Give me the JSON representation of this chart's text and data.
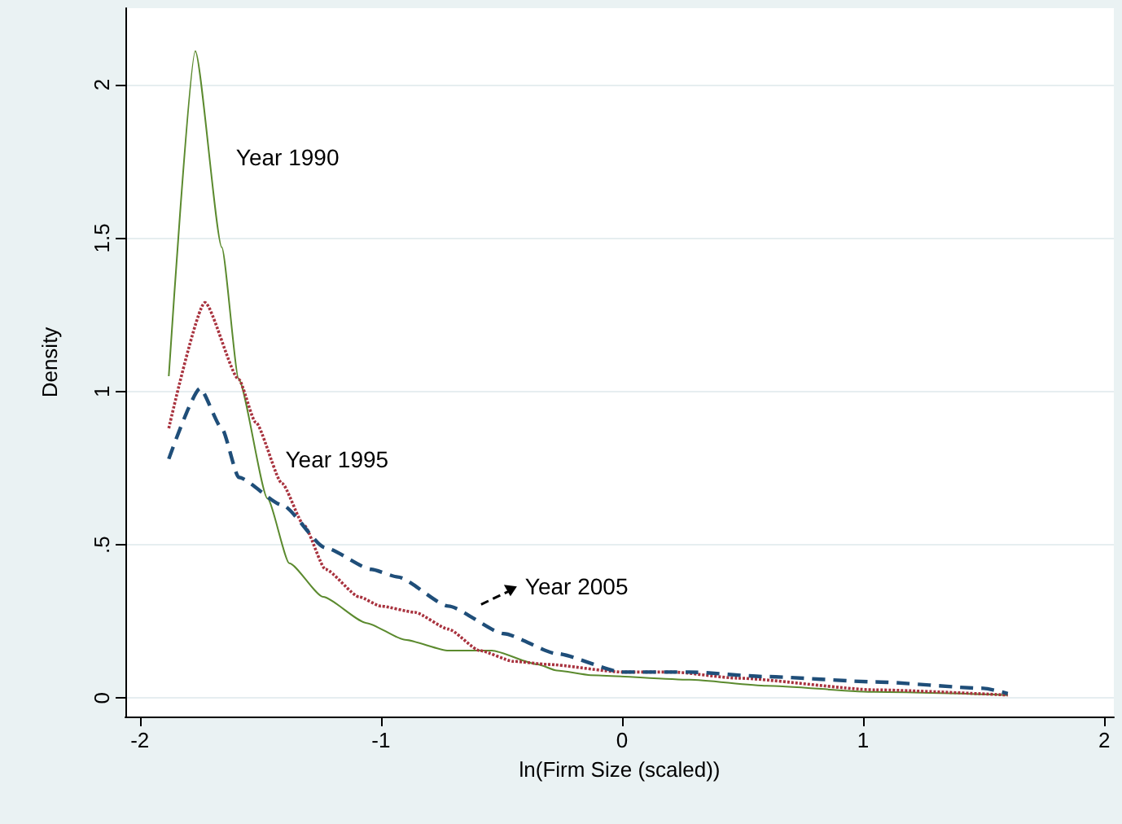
{
  "chart_data": {
    "type": "line",
    "xlabel": "ln(Firm Size (scaled))",
    "ylabel": "Density",
    "xlim": [
      -2.06,
      2.04
    ],
    "xticks": [
      -2,
      -1,
      0,
      1,
      2
    ],
    "ylim": [
      -0.06,
      2.25
    ],
    "yticks": [
      0,
      {
        "value": 0.5,
        "label": ".5"
      },
      1,
      1.5,
      2
    ],
    "grid": "y",
    "marker": "none",
    "series": [
      {
        "name": "Year 1990",
        "color": "#5b8a2e",
        "line_style": "solid",
        "x": [
          -1.88,
          -1.77,
          -1.66,
          -1.59,
          -1.47,
          -1.38,
          -1.24,
          -1.06,
          -0.9,
          -0.72,
          -0.54,
          -0.35,
          -0.27,
          -0.13,
          0.28,
          0.6,
          1.05,
          1.6
        ],
        "values": [
          1.05,
          2.11,
          1.47,
          1.04,
          0.65,
          0.44,
          0.33,
          0.245,
          0.19,
          0.155,
          0.155,
          0.11,
          0.09,
          0.075,
          0.06,
          0.04,
          0.02,
          0.01
        ]
      },
      {
        "name": "Year 1995",
        "color": "#a8323e",
        "line_style": "dotted",
        "x": [
          -1.88,
          -1.73,
          -1.59,
          -1.52,
          -1.41,
          -1.32,
          -1.23,
          -1.09,
          -1.0,
          -0.86,
          -0.72,
          -0.59,
          -0.45,
          -0.31,
          0.0,
          0.21,
          0.48,
          1.05,
          1.6
        ],
        "values": [
          0.88,
          1.29,
          1.04,
          0.9,
          0.7,
          0.565,
          0.42,
          0.33,
          0.3,
          0.28,
          0.225,
          0.155,
          0.12,
          0.11,
          0.085,
          0.085,
          0.065,
          0.027,
          0.01
        ]
      },
      {
        "name": "Year 2005",
        "color": "#1f4e79",
        "line_style": "dashed",
        "x": [
          -1.88,
          -1.75,
          -1.66,
          -1.59,
          -1.41,
          -1.23,
          -1.04,
          -0.93,
          -0.72,
          -0.49,
          -0.27,
          0.0,
          0.28,
          0.6,
          1.05,
          1.5,
          1.6
        ],
        "values": [
          0.78,
          1.01,
          0.88,
          0.72,
          0.63,
          0.49,
          0.42,
          0.395,
          0.3,
          0.21,
          0.145,
          0.085,
          0.085,
          0.07,
          0.053,
          0.032,
          0.015
        ]
      }
    ]
  }
}
